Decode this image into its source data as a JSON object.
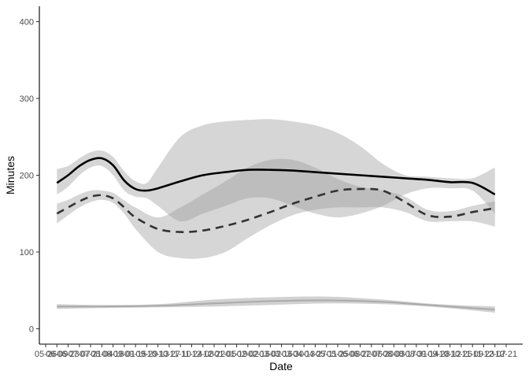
{
  "chart_data": {
    "type": "line",
    "title": "",
    "xlabel": "Date",
    "ylabel": "Minutes",
    "ylim": [
      -20,
      420
    ],
    "y_ticks": [
      0,
      100,
      200,
      300,
      400
    ],
    "x_tick_labels": [
      "05-26",
      "06-09",
      "06-23",
      "07-07",
      "07-21",
      "08-04",
      "08-18",
      "09-01",
      "09-15",
      "09-29",
      "10-13",
      "10-27",
      "11-10",
      "11-24",
      "12-08",
      "12-22",
      "01-05",
      "01-19",
      "02-02",
      "02-16",
      "03-02",
      "03-16",
      "03-30",
      "04-13",
      "04-27",
      "05-11",
      "05-25",
      "06-08",
      "06-22",
      "07-06",
      "07-20",
      "08-03",
      "08-17",
      "08-31",
      "09-14",
      "09-28",
      "10-12",
      "10-26",
      "11-09",
      "11-23",
      "12-07",
      "12-21"
    ],
    "grid": false,
    "legend": "none",
    "series": [
      {
        "style": "solid",
        "color": "#000000",
        "x": [
          1,
          2,
          3,
          4,
          5,
          6,
          7,
          8,
          9,
          10,
          12,
          14,
          16,
          18,
          20,
          22,
          24,
          26,
          28,
          30,
          32,
          34,
          36,
          38,
          40
        ],
        "y": [
          190,
          200,
          212,
          220,
          222,
          213,
          193,
          182,
          180,
          183,
          192,
          200,
          204,
          207,
          207,
          206,
          204,
          202,
          200,
          198,
          196,
          194,
          191,
          190,
          175
        ],
        "ci_low": [
          175,
          185,
          200,
          210,
          212,
          200,
          180,
          172,
          170,
          160,
          140,
          150,
          160,
          170,
          170,
          160,
          150,
          145,
          150,
          160,
          175,
          183,
          183,
          180,
          150
        ],
        "ci_high": [
          208,
          212,
          222,
          230,
          232,
          224,
          205,
          192,
          190,
          210,
          250,
          265,
          270,
          272,
          273,
          270,
          265,
          255,
          238,
          215,
          200,
          198,
          196,
          196,
          210
        ]
      },
      {
        "style": "dashed",
        "color": "#333333",
        "x": [
          1,
          2,
          3,
          4,
          5,
          6,
          7,
          8,
          10,
          12,
          14,
          16,
          18,
          20,
          22,
          24,
          26,
          28,
          30,
          32,
          34,
          36,
          38,
          40
        ],
        "y": [
          150,
          158,
          166,
          172,
          174,
          170,
          158,
          145,
          130,
          126,
          128,
          134,
          142,
          152,
          163,
          172,
          180,
          182,
          180,
          165,
          148,
          146,
          152,
          157
        ],
        "ci_low": [
          137,
          148,
          158,
          165,
          168,
          164,
          150,
          130,
          100,
          92,
          92,
          100,
          118,
          135,
          148,
          155,
          158,
          158,
          158,
          152,
          140,
          140,
          140,
          133
        ],
        "ci_high": [
          163,
          168,
          175,
          180,
          180,
          177,
          167,
          158,
          145,
          158,
          175,
          192,
          210,
          220,
          220,
          210,
          195,
          185,
          180,
          172,
          155,
          153,
          160,
          166
        ]
      },
      {
        "style": "solid",
        "color": "#aaaaaa",
        "x": [
          1,
          5,
          10,
          15,
          20,
          25,
          30,
          35,
          40
        ],
        "y": [
          29,
          29,
          30,
          33,
          36,
          37,
          35,
          30,
          25
        ],
        "ci_low": [
          26,
          27,
          28,
          29,
          31,
          33,
          32,
          28,
          21
        ],
        "ci_high": [
          32,
          31,
          32,
          38,
          41,
          42,
          38,
          32,
          29
        ]
      }
    ]
  }
}
